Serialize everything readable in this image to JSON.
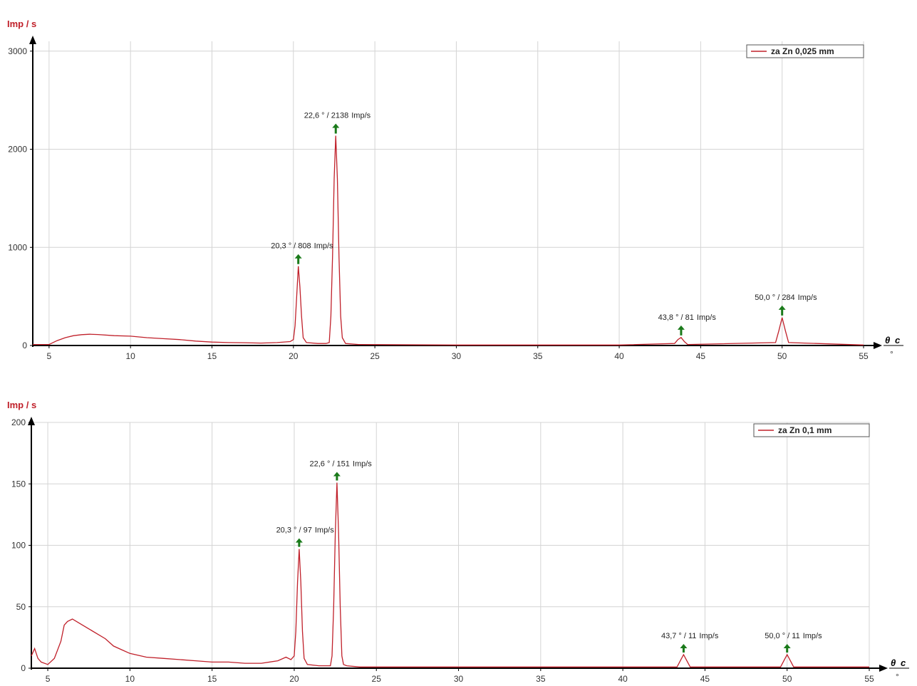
{
  "chart_data": [
    {
      "type": "line",
      "ylabel": "Imp / s",
      "xlabel_symbol": "θ",
      "xlabel_sub": "c",
      "xlabel_unit": "°",
      "xlim": [
        4,
        55
      ],
      "ylim": [
        0,
        3100
      ],
      "x_ticks": [
        5,
        10,
        15,
        20,
        25,
        30,
        35,
        40,
        45,
        50,
        55
      ],
      "y_ticks": [
        0,
        1000,
        2000,
        3000
      ],
      "grid": true,
      "legend_position": "top-right",
      "color": "#c0202a",
      "series": [
        {
          "name": "za Zn 0,025 mm",
          "x": [
            4.0,
            5.0,
            5.5,
            6.0,
            6.5,
            7.0,
            7.5,
            8.0,
            9.0,
            10.0,
            11.0,
            12.0,
            13.0,
            14.0,
            15.0,
            16.0,
            17.0,
            18.0,
            19.0,
            19.8,
            20.0,
            20.1,
            20.2,
            20.3,
            20.4,
            20.5,
            20.6,
            20.8,
            21.5,
            22.0,
            22.2,
            22.3,
            22.4,
            22.5,
            22.6,
            22.7,
            22.8,
            22.9,
            23.0,
            23.2,
            24.0,
            30.0,
            40.0,
            43.4,
            43.6,
            43.8,
            44.0,
            44.2,
            49.6,
            49.8,
            50.0,
            50.2,
            50.4,
            55.0
          ],
          "y": [
            10,
            10,
            50,
            80,
            100,
            110,
            115,
            112,
            100,
            95,
            80,
            70,
            60,
            45,
            35,
            30,
            28,
            25,
            30,
            40,
            60,
            200,
            500,
            808,
            600,
            300,
            80,
            30,
            20,
            20,
            30,
            300,
            900,
            1700,
            2138,
            1700,
            900,
            300,
            80,
            20,
            10,
            5,
            5,
            20,
            60,
            81,
            40,
            10,
            30,
            150,
            284,
            150,
            30,
            5
          ]
        }
      ],
      "annotations": [
        {
          "x": 20.3,
          "y": 808,
          "text": "20,3 ° / 808",
          "unit": "Imp/s"
        },
        {
          "x": 22.6,
          "y": 2138,
          "text": "22,6 ° / 2138",
          "unit": "Imp/s"
        },
        {
          "x": 43.8,
          "y": 81,
          "text": "43,8 ° / 81",
          "unit": "Imp/s"
        },
        {
          "x": 50.0,
          "y": 284,
          "text": "50,0 ° / 284",
          "unit": "Imp/s"
        }
      ]
    },
    {
      "type": "line",
      "ylabel": "Imp / s",
      "xlabel_symbol": "θ",
      "xlabel_sub": "c",
      "xlabel_unit": "°",
      "xlim": [
        4,
        55
      ],
      "ylim": [
        0,
        200
      ],
      "x_ticks": [
        5,
        10,
        15,
        20,
        25,
        30,
        35,
        40,
        45,
        50,
        55
      ],
      "y_ticks": [
        0,
        50,
        100,
        150,
        200
      ],
      "grid": true,
      "legend_position": "top-right",
      "color": "#c0202a",
      "series": [
        {
          "name": "za Zn 0,1 mm",
          "x": [
            4.0,
            4.2,
            4.4,
            4.6,
            5.0,
            5.4,
            5.8,
            6.0,
            6.2,
            6.5,
            7.0,
            7.5,
            8.0,
            8.5,
            9.0,
            9.5,
            10.0,
            11.0,
            12.0,
            13.0,
            14.0,
            15.0,
            16.0,
            17.0,
            18.0,
            19.0,
            19.5,
            19.8,
            20.0,
            20.1,
            20.2,
            20.3,
            20.4,
            20.5,
            20.6,
            20.8,
            21.5,
            22.2,
            22.3,
            22.4,
            22.5,
            22.6,
            22.7,
            22.8,
            22.9,
            23.0,
            23.2,
            24.0,
            26.0,
            30.0,
            40.0,
            43.3,
            43.5,
            43.7,
            43.9,
            44.1,
            49.6,
            49.8,
            50.0,
            50.2,
            50.4,
            55.0
          ],
          "y": [
            10,
            16,
            8,
            5,
            3,
            8,
            22,
            35,
            38,
            40,
            36,
            32,
            28,
            24,
            18,
            15,
            12,
            9,
            8,
            7,
            6,
            5,
            5,
            4,
            4,
            6,
            9,
            7,
            10,
            30,
            70,
            97,
            70,
            30,
            8,
            3,
            2,
            2,
            10,
            50,
            110,
            151,
            110,
            50,
            10,
            3,
            2,
            1,
            1,
            1,
            1,
            1,
            6,
            11,
            6,
            1,
            1,
            6,
            11,
            6,
            1,
            1
          ]
        }
      ],
      "annotations": [
        {
          "x": 20.3,
          "y": 97,
          "text": "20,3 ° / 97",
          "unit": "Imp/s"
        },
        {
          "x": 22.6,
          "y": 151,
          "text": "22,6 ° / 151",
          "unit": "Imp/s"
        },
        {
          "x": 43.7,
          "y": 11,
          "text": "43,7 ° / 11",
          "unit": "Imp/s"
        },
        {
          "x": 50.0,
          "y": 11,
          "text": "50,0 ° / 11",
          "unit": "Imp/s"
        }
      ]
    }
  ]
}
